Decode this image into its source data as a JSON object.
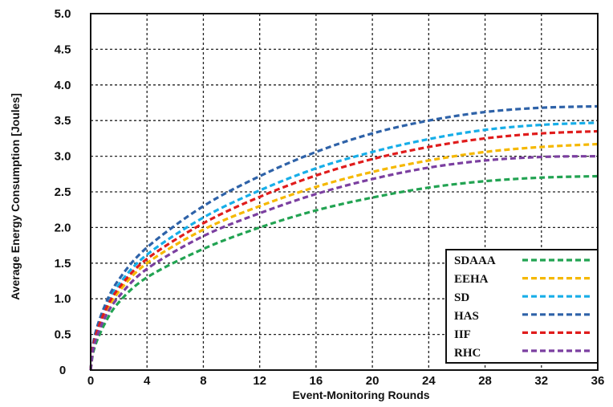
{
  "chart_data": {
    "type": "line",
    "title": "",
    "xlabel": "Event-Monitoring Rounds",
    "ylabel": "Average Energy Consumption [Joules]",
    "xlim": [
      0,
      36
    ],
    "ylim": [
      0,
      5.0
    ],
    "xticks": [
      "0",
      "4",
      "8",
      "12",
      "16",
      "20",
      "24",
      "28",
      "32",
      "36"
    ],
    "yticks": [
      "0",
      "0.5",
      "1.0",
      "1.5",
      "2.0",
      "2.5",
      "3.0",
      "3.5",
      "4.0",
      "4.5",
      "5.0"
    ],
    "grid": true,
    "legend_position": "bottom-right",
    "line_style": "dashed",
    "x": [
      0,
      0.25,
      1,
      2,
      4,
      8,
      12,
      16,
      20,
      24,
      28,
      32,
      36
    ],
    "series": [
      {
        "name": "SDAAA",
        "color": "#22a352",
        "values": [
          0,
          0.3,
          0.65,
          0.95,
          1.3,
          1.7,
          2.0,
          2.24,
          2.42,
          2.56,
          2.65,
          2.7,
          2.72
        ]
      },
      {
        "name": "EEHA",
        "color": "#f5b800",
        "values": [
          0,
          0.38,
          0.78,
          1.1,
          1.5,
          1.97,
          2.3,
          2.57,
          2.78,
          2.94,
          3.06,
          3.13,
          3.17
        ]
      },
      {
        "name": "SD",
        "color": "#17aee8",
        "values": [
          0,
          0.42,
          0.85,
          1.2,
          1.62,
          2.14,
          2.52,
          2.83,
          3.06,
          3.24,
          3.37,
          3.44,
          3.47
        ]
      },
      {
        "name": "HAS",
        "color": "#2e62a8",
        "values": [
          0,
          0.45,
          0.9,
          1.27,
          1.72,
          2.3,
          2.72,
          3.06,
          3.32,
          3.5,
          3.62,
          3.68,
          3.7
        ]
      },
      {
        "name": "IIF",
        "color": "#e01c1c",
        "values": [
          0,
          0.4,
          0.82,
          1.15,
          1.56,
          2.06,
          2.43,
          2.73,
          2.96,
          3.13,
          3.25,
          3.32,
          3.35
        ]
      },
      {
        "name": "RHC",
        "color": "#7b3fa0",
        "values": [
          0,
          0.35,
          0.73,
          1.03,
          1.42,
          1.88,
          2.2,
          2.47,
          2.68,
          2.84,
          2.94,
          2.99,
          3.0
        ]
      }
    ]
  }
}
